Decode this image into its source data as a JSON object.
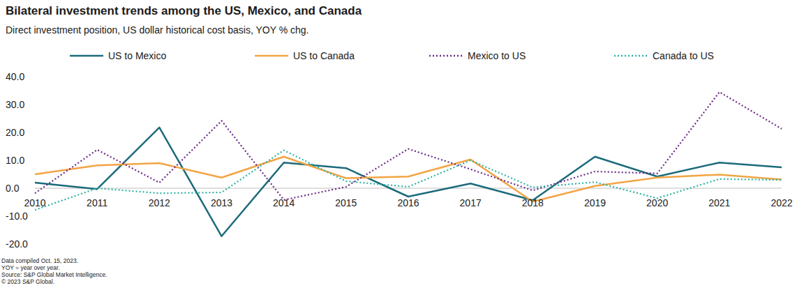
{
  "chart_data": {
    "type": "line",
    "title": "Bilateral investment trends among the US, Mexico, and Canada",
    "subtitle": "Direct investment position, US dollar historical cost basis, YOY % chg.",
    "notes": [
      "Data compiled Oct. 15, 2023.",
      "YOY = year over year.",
      "Source: S&P Global Market Intelligence.",
      "© 2023 S&P Global."
    ],
    "categories": [
      "2010",
      "2011",
      "2012",
      "2013",
      "2014",
      "2015",
      "2016",
      "2017",
      "2018",
      "2019",
      "2020",
      "2021",
      "2022"
    ],
    "series": [
      {
        "name": "US to Mexico",
        "color": "#1b6b7b",
        "line_style": "solid",
        "values": [
          2.0,
          -0.3,
          21.8,
          -17.2,
          9.2,
          7.2,
          -3.0,
          1.7,
          -4.3,
          11.3,
          4.2,
          9.2,
          7.5
        ]
      },
      {
        "name": "US to Canada",
        "color": "#f3a444",
        "line_style": "solid",
        "values": [
          5.0,
          8.2,
          9.0,
          3.8,
          11.3,
          3.6,
          4.2,
          10.3,
          -4.8,
          0.8,
          3.8,
          4.9,
          3.1
        ]
      },
      {
        "name": "Mexico to US",
        "color": "#6a2a88",
        "line_style": "dotted",
        "values": [
          -1.8,
          13.8,
          2.0,
          24.2,
          -4.2,
          0.5,
          14.1,
          6.8,
          -0.8,
          6.0,
          5.3,
          34.5,
          21.3
        ]
      },
      {
        "name": "Canada to US",
        "color": "#2bb3a3",
        "line_style": "dotted",
        "values": [
          -7.8,
          0.0,
          -1.8,
          -1.5,
          13.6,
          2.5,
          0.5,
          10.0,
          0.3,
          2.2,
          -3.6,
          3.3,
          3.0
        ]
      }
    ],
    "ylim": [
      -20,
      40
    ],
    "yticks": [
      {
        "value": -20,
        "label": "-20.0"
      },
      {
        "value": -10,
        "label": "-10.0"
      },
      {
        "value": 0,
        "label": "0.0"
      },
      {
        "value": 10,
        "label": "10.0"
      },
      {
        "value": 20,
        "label": "20.0"
      },
      {
        "value": 30,
        "label": "30.0"
      },
      {
        "value": 40,
        "label": "40.0"
      }
    ],
    "grid": false,
    "legend": "top"
  }
}
